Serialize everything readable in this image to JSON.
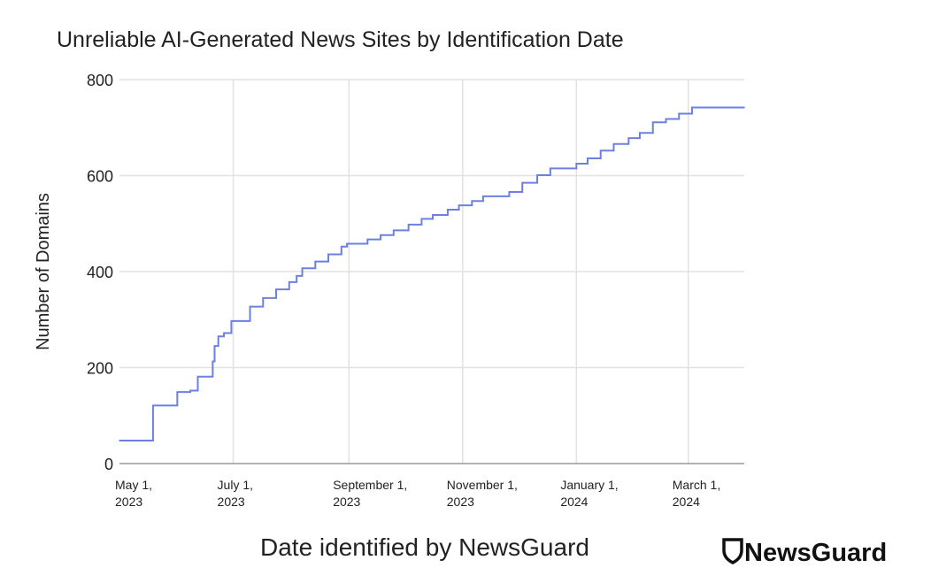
{
  "chart_data": {
    "type": "line",
    "step": true,
    "title": "Unreliable AI-Generated News Sites by Identification Date",
    "xlabel": "Date identified by NewsGuard",
    "ylabel": "Number of Domains",
    "ylim": [
      0,
      800
    ],
    "yticks": [
      0,
      200,
      400,
      600,
      800
    ],
    "xlim": [
      "2023-05-01",
      "2024-03-31"
    ],
    "xticks": [
      {
        "date": "2023-05-01",
        "line1": "May 1,",
        "line2": "2023"
      },
      {
        "date": "2023-07-01",
        "line1": "July 1,",
        "line2": "2023"
      },
      {
        "date": "2023-09-01",
        "line1": "September 1,",
        "line2": "2023"
      },
      {
        "date": "2023-11-01",
        "line1": "November 1,",
        "line2": "2023"
      },
      {
        "date": "2024-01-01",
        "line1": "January 1,",
        "line2": "2024"
      },
      {
        "date": "2024-03-01",
        "line1": "March 1,",
        "line2": "2024"
      }
    ],
    "grid": true,
    "line_color": "#6b80e0",
    "points": [
      [
        "2023-05-01",
        48
      ],
      [
        "2023-05-19",
        121
      ],
      [
        "2023-06-01",
        149
      ],
      [
        "2023-06-08",
        152
      ],
      [
        "2023-06-12",
        181
      ],
      [
        "2023-06-20",
        213
      ],
      [
        "2023-06-21",
        245
      ],
      [
        "2023-06-23",
        265
      ],
      [
        "2023-06-26",
        272
      ],
      [
        "2023-06-30",
        297
      ],
      [
        "2023-07-10",
        327
      ],
      [
        "2023-07-17",
        345
      ],
      [
        "2023-07-24",
        363
      ],
      [
        "2023-07-31",
        378
      ],
      [
        "2023-08-04",
        391
      ],
      [
        "2023-08-07",
        407
      ],
      [
        "2023-08-14",
        421
      ],
      [
        "2023-08-21",
        436
      ],
      [
        "2023-08-28",
        452
      ],
      [
        "2023-08-31",
        458
      ],
      [
        "2023-09-11",
        467
      ],
      [
        "2023-09-18",
        476
      ],
      [
        "2023-09-25",
        486
      ],
      [
        "2023-10-03",
        498
      ],
      [
        "2023-10-10",
        510
      ],
      [
        "2023-10-16",
        518
      ],
      [
        "2023-10-24",
        529
      ],
      [
        "2023-10-30",
        538
      ],
      [
        "2023-11-06",
        547
      ],
      [
        "2023-11-12",
        557
      ],
      [
        "2023-11-26",
        566
      ],
      [
        "2023-12-03",
        585
      ],
      [
        "2023-12-11",
        601
      ],
      [
        "2023-12-18",
        615
      ],
      [
        "2024-01-01",
        625
      ],
      [
        "2024-01-07",
        636
      ],
      [
        "2024-01-14",
        652
      ],
      [
        "2024-01-21",
        666
      ],
      [
        "2024-01-29",
        678
      ],
      [
        "2024-02-04",
        689
      ],
      [
        "2024-02-11",
        711
      ],
      [
        "2024-02-18",
        718
      ],
      [
        "2024-02-25",
        729
      ],
      [
        "2024-03-03",
        742
      ],
      [
        "2024-03-31",
        742
      ]
    ]
  },
  "logo": {
    "text": "NewsGuard",
    "icon": "shield-icon"
  }
}
